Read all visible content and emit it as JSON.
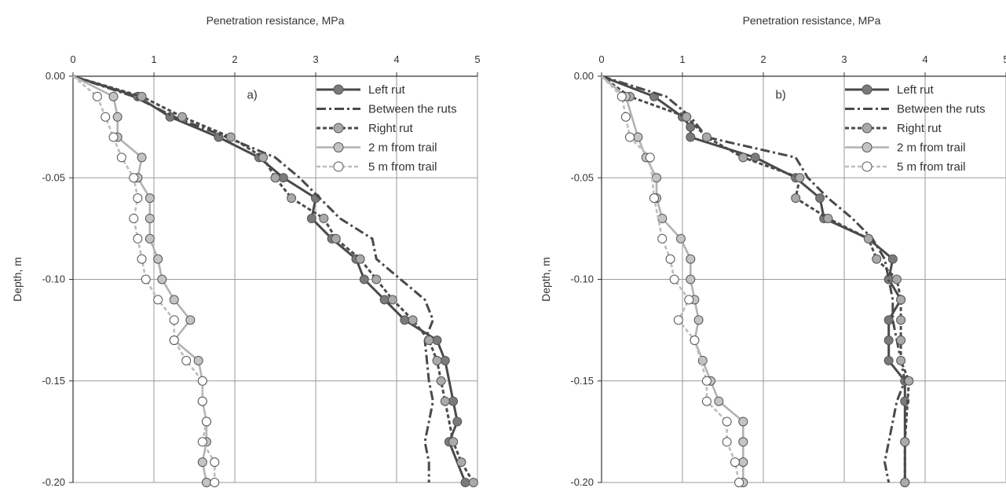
{
  "chart_data": [
    {
      "type": "line",
      "panel_label": "a)",
      "title": "",
      "xlabel": "Penetration resistance, MPa",
      "ylabel": "Depth, m",
      "xlim": [
        0,
        5
      ],
      "ylim": [
        -0.2,
        0
      ],
      "x_ticks": [
        "0",
        "1",
        "2",
        "3",
        "4",
        "5"
      ],
      "y_ticks": [
        "0.00",
        "-0.05",
        "-0.10",
        "-0.15",
        "-0.20"
      ],
      "grid": true,
      "legend_position": "top-right",
      "series": [
        {
          "name": "Left rut",
          "color": "#4a4a4a",
          "dash": "solid",
          "marker": true,
          "marker_fill": "#7a7a7a",
          "x": [
            0.0,
            0.8,
            1.2,
            1.8,
            2.3,
            2.6,
            3.0,
            2.95,
            3.2,
            3.5,
            3.6,
            3.85,
            4.1,
            4.5,
            4.6,
            4.7,
            4.75,
            4.65,
            4.85
          ],
          "y": [
            0.0,
            -0.01,
            -0.02,
            -0.03,
            -0.04,
            -0.05,
            -0.06,
            -0.07,
            -0.08,
            -0.09,
            -0.1,
            -0.11,
            -0.12,
            -0.13,
            -0.14,
            -0.16,
            -0.17,
            -0.18,
            -0.2
          ]
        },
        {
          "name": "Between the ruts",
          "color": "#4a4a4a",
          "dash": "dashdot",
          "marker": false,
          "x": [
            0.0,
            0.75,
            1.25,
            1.9,
            2.5,
            2.8,
            3.3,
            3.7,
            3.75,
            4.35,
            4.45,
            4.35,
            4.4,
            4.45,
            4.4,
            4.35,
            4.4,
            4.4
          ],
          "y": [
            0.0,
            -0.01,
            -0.02,
            -0.03,
            -0.04,
            -0.05,
            -0.07,
            -0.08,
            -0.09,
            -0.11,
            -0.12,
            -0.13,
            -0.15,
            -0.16,
            -0.17,
            -0.18,
            -0.19,
            -0.2
          ]
        },
        {
          "name": "Right rut",
          "color": "#4a4a4a",
          "dash": "dashed",
          "marker": true,
          "marker_fill": "#aaaaaa",
          "x": [
            0.0,
            0.85,
            1.35,
            1.95,
            2.35,
            2.5,
            2.7,
            3.1,
            3.25,
            3.55,
            3.75,
            3.95,
            4.2,
            4.4,
            4.5,
            4.55,
            4.6,
            4.7,
            4.8,
            4.95
          ],
          "y": [
            0.0,
            -0.01,
            -0.02,
            -0.03,
            -0.04,
            -0.05,
            -0.06,
            -0.07,
            -0.08,
            -0.09,
            -0.1,
            -0.11,
            -0.12,
            -0.13,
            -0.14,
            -0.15,
            -0.16,
            -0.18,
            -0.19,
            -0.2
          ]
        },
        {
          "name": "2 m from trail",
          "color": "#b2b2b2",
          "dash": "solid",
          "marker": true,
          "marker_fill": "#c4c4c4",
          "x": [
            0.0,
            0.5,
            0.55,
            0.55,
            0.85,
            0.8,
            0.95,
            0.95,
            0.95,
            1.05,
            1.1,
            1.25,
            1.45,
            1.25,
            1.55,
            1.6,
            1.6,
            1.65,
            1.65,
            1.6,
            1.65
          ],
          "y": [
            0.0,
            -0.01,
            -0.02,
            -0.03,
            -0.04,
            -0.05,
            -0.06,
            -0.07,
            -0.08,
            -0.09,
            -0.1,
            -0.11,
            -0.12,
            -0.13,
            -0.14,
            -0.15,
            -0.16,
            -0.17,
            -0.18,
            -0.19,
            -0.2
          ]
        },
        {
          "name": "5 m from trail",
          "color": "#bdbdbd",
          "dash": "dashed",
          "marker": true,
          "marker_fill": "#ffffff",
          "x": [
            0.0,
            0.3,
            0.4,
            0.5,
            0.6,
            0.75,
            0.8,
            0.75,
            0.8,
            0.85,
            0.9,
            1.05,
            1.25,
            1.25,
            1.4,
            1.6,
            1.6,
            1.65,
            1.6,
            1.75,
            1.75
          ],
          "y": [
            0.0,
            -0.01,
            -0.02,
            -0.03,
            -0.04,
            -0.05,
            -0.06,
            -0.07,
            -0.08,
            -0.09,
            -0.1,
            -0.11,
            -0.12,
            -0.13,
            -0.14,
            -0.15,
            -0.16,
            -0.17,
            -0.18,
            -0.19,
            -0.2
          ]
        }
      ]
    },
    {
      "type": "line",
      "panel_label": "b)",
      "title": "",
      "xlabel": "Penetration resistance, MPa",
      "ylabel": "Depth, m",
      "xlim": [
        0,
        5
      ],
      "ylim": [
        -0.2,
        0
      ],
      "x_ticks": [
        "0",
        "1",
        "2",
        "3",
        "4",
        "5"
      ],
      "y_ticks": [
        "0.00",
        "-0.05",
        "-0.10",
        "-0.15",
        "-0.20"
      ],
      "grid": true,
      "legend_position": "top-right",
      "series": [
        {
          "name": "Left rut",
          "color": "#4a4a4a",
          "dash": "solid",
          "marker": true,
          "marker_fill": "#7a7a7a",
          "x": [
            0.0,
            0.65,
            1.0,
            1.1,
            1.1,
            1.9,
            2.4,
            2.7,
            2.75,
            3.3,
            3.6,
            3.55,
            3.7,
            3.55,
            3.55,
            3.55,
            3.75,
            3.75,
            3.75,
            3.75
          ],
          "y": [
            0.0,
            -0.01,
            -0.02,
            -0.025,
            -0.03,
            -0.04,
            -0.05,
            -0.06,
            -0.07,
            -0.08,
            -0.09,
            -0.1,
            -0.11,
            -0.12,
            -0.13,
            -0.14,
            -0.15,
            -0.16,
            -0.18,
            -0.2
          ]
        },
        {
          "name": "Between the ruts",
          "color": "#4a4a4a",
          "dash": "dashdot",
          "marker": false,
          "x": [
            0.0,
            0.8,
            1.1,
            1.3,
            2.4,
            2.55,
            2.8,
            3.1,
            3.35,
            3.5,
            3.55,
            3.6,
            3.6,
            3.65,
            3.75,
            3.65,
            3.55,
            3.5,
            3.55
          ],
          "y": [
            0.0,
            -0.01,
            -0.02,
            -0.03,
            -0.04,
            -0.05,
            -0.06,
            -0.07,
            -0.08,
            -0.09,
            -0.1,
            -0.11,
            -0.12,
            -0.13,
            -0.15,
            -0.16,
            -0.18,
            -0.19,
            -0.2
          ]
        },
        {
          "name": "Right rut",
          "color": "#4a4a4a",
          "dash": "dashed",
          "marker": true,
          "marker_fill": "#aaaaaa",
          "x": [
            0.0,
            0.35,
            1.05,
            1.3,
            1.75,
            2.45,
            2.4,
            2.8,
            3.3,
            3.4,
            3.65,
            3.7,
            3.7,
            3.7,
            3.7,
            3.8,
            3.75,
            3.75
          ],
          "y": [
            0.0,
            -0.01,
            -0.02,
            -0.03,
            -0.04,
            -0.05,
            -0.06,
            -0.07,
            -0.08,
            -0.09,
            -0.1,
            -0.11,
            -0.12,
            -0.13,
            -0.14,
            -0.15,
            -0.18,
            -0.2
          ]
        },
        {
          "name": "2 m from trail",
          "color": "#b2b2b2",
          "dash": "solid",
          "marker": true,
          "marker_fill": "#c4c4c4",
          "x": [
            0.0,
            0.3,
            0.45,
            0.55,
            0.68,
            0.68,
            0.75,
            0.98,
            1.1,
            1.1,
            1.15,
            1.2,
            1.15,
            1.25,
            1.35,
            1.45,
            1.75,
            1.75,
            1.75,
            1.75
          ],
          "y": [
            0.0,
            -0.01,
            -0.03,
            -0.04,
            -0.05,
            -0.06,
            -0.07,
            -0.08,
            -0.09,
            -0.1,
            -0.11,
            -0.12,
            -0.13,
            -0.14,
            -0.15,
            -0.16,
            -0.17,
            -0.18,
            -0.19,
            -0.2
          ]
        },
        {
          "name": "5 m from trail",
          "color": "#bdbdbd",
          "dash": "dashed",
          "marker": true,
          "marker_fill": "#ffffff",
          "x": [
            0.0,
            0.25,
            0.3,
            0.35,
            0.6,
            0.65,
            0.75,
            0.85,
            0.9,
            1.08,
            0.95,
            1.15,
            1.3,
            1.3,
            1.55,
            1.55,
            1.65,
            1.7
          ],
          "y": [
            0.0,
            -0.01,
            -0.02,
            -0.03,
            -0.04,
            -0.06,
            -0.08,
            -0.09,
            -0.1,
            -0.11,
            -0.12,
            -0.13,
            -0.15,
            -0.16,
            -0.17,
            -0.18,
            -0.19,
            -0.2
          ]
        }
      ]
    }
  ]
}
